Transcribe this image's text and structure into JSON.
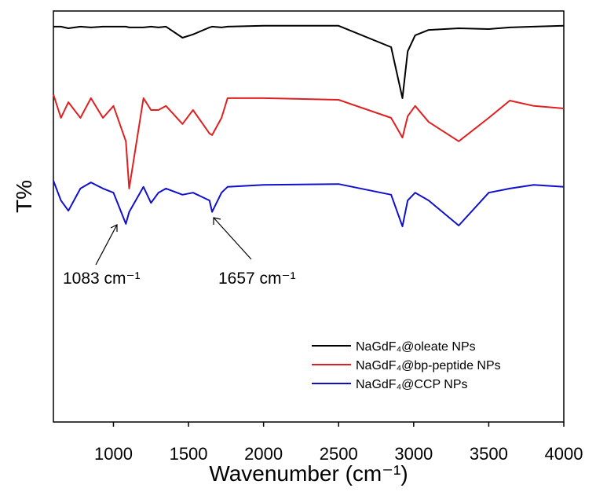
{
  "chart_data": {
    "type": "line",
    "x_label": "Wavenumber (cm⁻¹)",
    "y_label": "T%",
    "x": [
      600,
      650,
      700,
      780,
      850,
      930,
      1000,
      1083,
      1105,
      1200,
      1250,
      1300,
      1350,
      1460,
      1530,
      1640,
      1657,
      1720,
      1760,
      2000,
      2500,
      2850,
      2925,
      2960,
      3010,
      3100,
      3300,
      3500,
      3640,
      3800,
      4000
    ],
    "series": [
      {
        "name": "NaGdF₄@oleate NPs",
        "color": "#000000",
        "values": [
          96.2,
          96.2,
          95.8,
          96.2,
          96.0,
          96.2,
          96.2,
          96.2,
          96.0,
          96.0,
          96.2,
          96.0,
          96.2,
          93.5,
          94.3,
          96.0,
          96.2,
          96.0,
          96.2,
          96.4,
          96.4,
          91.2,
          78.8,
          90.2,
          94.1,
          95.4,
          95.8,
          95.6,
          96.0,
          96.2,
          96.4
        ]
      },
      {
        "name": "NaGdF₄@bp-peptide NPs",
        "color": "#e02020",
        "values": [
          79.7,
          74.0,
          77.8,
          74.0,
          78.8,
          74.0,
          76.9,
          68.3,
          56.8,
          78.8,
          75.9,
          75.9,
          76.9,
          72.5,
          75.9,
          70.2,
          69.8,
          74.0,
          78.8,
          78.8,
          78.4,
          74.0,
          69.2,
          74.4,
          76.9,
          73.0,
          68.3,
          74.0,
          78.2,
          76.9,
          76.3
        ]
      },
      {
        "name": "NaGdF₄@CCP NPs",
        "color": "#1010cc",
        "values": [
          58.7,
          53.9,
          51.4,
          56.8,
          58.3,
          56.8,
          55.8,
          48.2,
          51.1,
          57.2,
          53.3,
          55.8,
          56.8,
          55.3,
          55.8,
          53.9,
          51.1,
          55.8,
          57.2,
          57.7,
          57.9,
          55.3,
          47.6,
          53.9,
          55.8,
          53.9,
          47.8,
          55.8,
          56.8,
          57.7,
          57.2
        ]
      }
    ],
    "annotations": [
      "1083 cm⁻¹",
      "1657 cm⁻¹"
    ],
    "xlim": [
      600,
      4000
    ],
    "xticks": [
      1000,
      1500,
      2000,
      2500,
      3000,
      3500,
      4000
    ],
    "ylim": [
      0,
      100
    ],
    "legend": "lower right"
  }
}
